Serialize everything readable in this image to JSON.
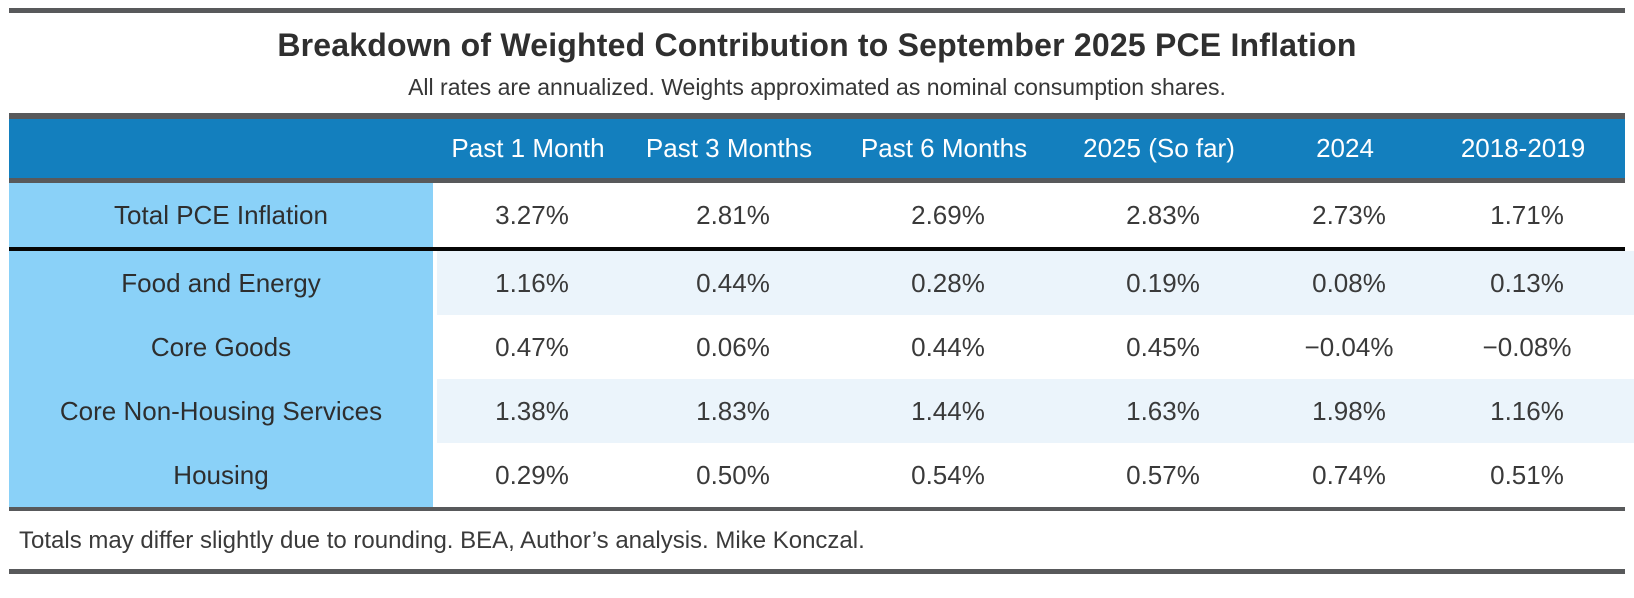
{
  "title": "Breakdown of Weighted Contribution to September 2025 PCE Inflation",
  "subtitle": "All rates are annualized. Weights approximated as nominal consumption shares.",
  "footer_note": "Totals may differ slightly due to rounding. BEA, Author’s analysis. Mike Konczal.",
  "colors": {
    "header_bg": "#137fbe",
    "label_column_bg": "#8ad1f8",
    "row_tint_bg": "#ebf4fb",
    "rule_gray": "#58595b",
    "separator_black": "#060606",
    "header_text": "#ffffff",
    "body_text": "#3a3a3a"
  },
  "chart_data": {
    "type": "table",
    "title": "Breakdown of Weighted Contribution to September 2025 PCE Inflation",
    "subtitle": "All rates are annualized. Weights approximated as nominal consumption shares.",
    "columns": [
      "",
      "Past 1 Month",
      "Past 3 Months",
      "Past 6 Months",
      "2025 (So far)",
      "2024",
      "2018-2019"
    ],
    "rows": [
      {
        "label": "Total PCE Inflation",
        "values": [
          "3.27%",
          "2.81%",
          "2.69%",
          "2.83%",
          "2.73%",
          "1.71%"
        ]
      },
      {
        "label": "Food and Energy",
        "values": [
          "1.16%",
          "0.44%",
          "0.28%",
          "0.19%",
          "0.08%",
          "0.13%"
        ]
      },
      {
        "label": "Core Goods",
        "values": [
          "0.47%",
          "0.06%",
          "0.44%",
          "0.45%",
          "−0.04%",
          "−0.08%"
        ]
      },
      {
        "label": "Core Non-Housing Services",
        "values": [
          "1.38%",
          "1.83%",
          "1.44%",
          "1.63%",
          "1.98%",
          "1.16%"
        ]
      },
      {
        "label": "Housing",
        "values": [
          "0.29%",
          "0.50%",
          "0.54%",
          "0.57%",
          "0.74%",
          "0.51%"
        ]
      }
    ],
    "notes": "Totals may differ slightly due to rounding. BEA, Author’s analysis. Mike Konczal.",
    "layout": {
      "unit": "percent",
      "separator_below_row": "Total PCE Inflation"
    }
  }
}
